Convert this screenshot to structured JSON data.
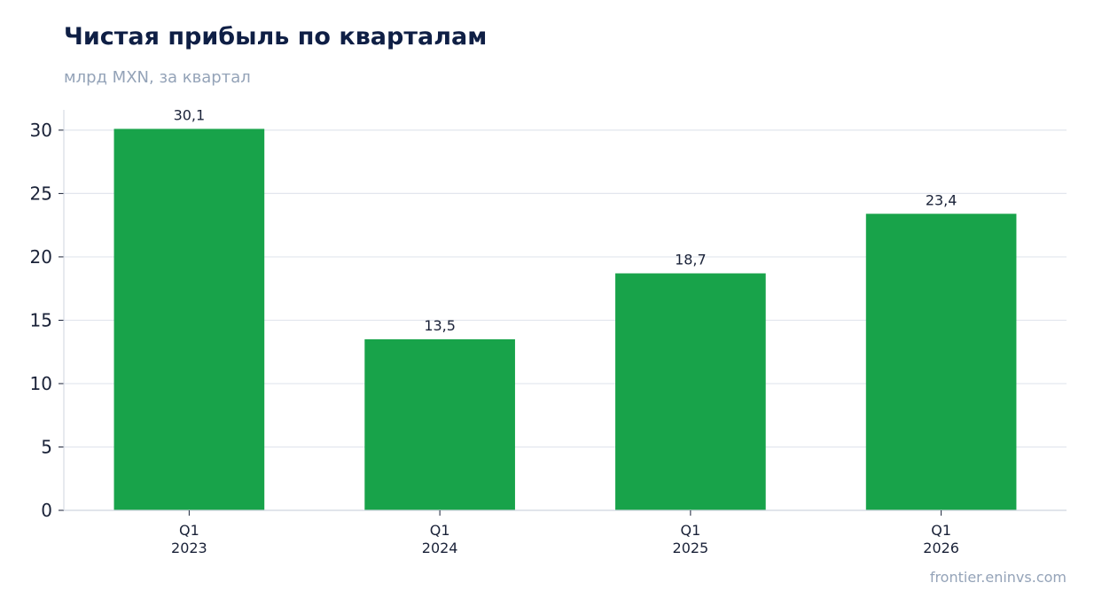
{
  "header": {
    "title": "Чистая прибыль по кварталам",
    "subtitle": "млрд MXN, за квартал"
  },
  "footer": {
    "source": "frontier.eninvs.com"
  },
  "colors": {
    "bar": "#18a34a",
    "grid": "#e2e6ee",
    "axis": "#cfd5df",
    "text": "#1a2238"
  },
  "chart_data": {
    "type": "bar",
    "categories": [
      [
        "Q1",
        "2023"
      ],
      [
        "Q1",
        "2024"
      ],
      [
        "Q1",
        "2025"
      ],
      [
        "Q1",
        "2026"
      ]
    ],
    "values": [
      30.1,
      13.5,
      18.7,
      23.4
    ],
    "data_labels": [
      "30,1",
      "13,5",
      "18,7",
      "23,4"
    ],
    "title": "Чистая прибыль по кварталам",
    "subtitle": "млрд MXN, за квартал",
    "xlabel": "",
    "ylabel": "",
    "ylim": [
      0,
      31.6
    ],
    "yticks": [
      0,
      5,
      10,
      15,
      20,
      25,
      30
    ],
    "grid": true,
    "legend": "none"
  }
}
